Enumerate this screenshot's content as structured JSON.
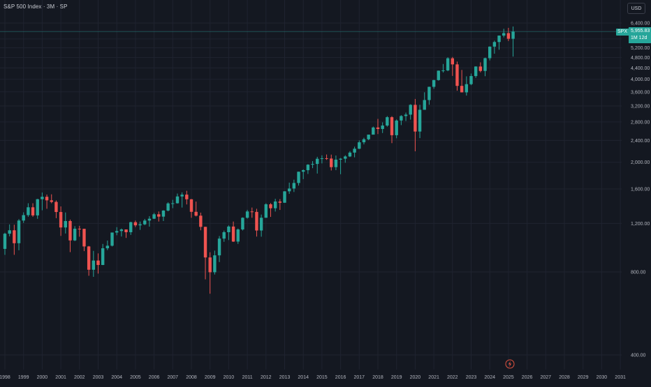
{
  "header": {
    "title": "S&P 500 Index · 3M · SP",
    "currency": "USD"
  },
  "last_price": {
    "symbol": "SPX",
    "value": "5,955.83",
    "countdown": "1M 12d"
  },
  "colors": {
    "background": "#141821",
    "grid": "#1f2330",
    "up": "#26a69a",
    "down": "#ef5350",
    "axis_text": "#b2b5be",
    "price_line": "#26a69a"
  },
  "chart_data": {
    "type": "candlestick",
    "title": "S&P 500 Index · 3M · SP",
    "xlabel": "",
    "ylabel": "",
    "y_scale": "log",
    "ylim": [
      360,
      7200
    ],
    "xlim": [
      1998.0,
      2031.6
    ],
    "y_ticks": [
      400,
      800,
      1200,
      1600,
      2000,
      2400,
      2800,
      3200,
      3600,
      4000,
      4400,
      4800,
      5200,
      5600,
      6000,
      6400
    ],
    "y_tick_labels": [
      "400.00",
      "800.00",
      "1,200.00",
      "1,600.00",
      "2,000.00",
      "2,400.00",
      "2,800.00",
      "3,200.00",
      "3,600.00",
      "4,000.00",
      "4,400.00",
      "4,800.00",
      "5,200.00",
      "5,600.00",
      "6,000.00",
      "6,400.00"
    ],
    "x_ticks": [
      "1998",
      "1999",
      "2000",
      "2001",
      "2002",
      "2003",
      "2004",
      "2005",
      "2006",
      "2007",
      "2008",
      "2009",
      "2010",
      "2011",
      "2012",
      "2013",
      "2014",
      "2015",
      "2016",
      "2017",
      "2018",
      "2019",
      "2020",
      "2021",
      "2022",
      "2023",
      "2024",
      "2025",
      "2026",
      "2027",
      "2028",
      "2029",
      "2030",
      "2031"
    ],
    "grid": true,
    "legend": "none",
    "last_price": 5955.83,
    "candles": [
      {
        "x": 1998.0,
        "o": 970,
        "h": 1110,
        "l": 923,
        "c": 1101
      },
      {
        "x": 1998.25,
        "o": 1101,
        "h": 1190,
        "l": 1077,
        "c": 1133
      },
      {
        "x": 1998.5,
        "o": 1133,
        "h": 1187,
        "l": 923,
        "c": 1017
      },
      {
        "x": 1998.75,
        "o": 1017,
        "h": 1244,
        "l": 959,
        "c": 1229
      },
      {
        "x": 1999.0,
        "o": 1229,
        "h": 1316,
        "l": 1205,
        "c": 1286
      },
      {
        "x": 1999.25,
        "o": 1286,
        "h": 1420,
        "l": 1268,
        "c": 1373
      },
      {
        "x": 1999.5,
        "o": 1373,
        "h": 1420,
        "l": 1268,
        "c": 1283
      },
      {
        "x": 1999.75,
        "o": 1283,
        "h": 1473,
        "l": 1247,
        "c": 1469
      },
      {
        "x": 2000.0,
        "o": 1469,
        "h": 1553,
        "l": 1339,
        "c": 1499
      },
      {
        "x": 2000.25,
        "o": 1499,
        "h": 1527,
        "l": 1356,
        "c": 1455
      },
      {
        "x": 2000.5,
        "o": 1455,
        "h": 1530,
        "l": 1420,
        "c": 1436
      },
      {
        "x": 2000.75,
        "o": 1436,
        "h": 1454,
        "l": 1254,
        "c": 1320
      },
      {
        "x": 2001.0,
        "o": 1320,
        "h": 1383,
        "l": 1081,
        "c": 1160
      },
      {
        "x": 2001.25,
        "o": 1160,
        "h": 1315,
        "l": 1103,
        "c": 1224
      },
      {
        "x": 2001.5,
        "o": 1224,
        "h": 1239,
        "l": 944,
        "c": 1041
      },
      {
        "x": 2001.75,
        "o": 1041,
        "h": 1173,
        "l": 1035,
        "c": 1148
      },
      {
        "x": 2002.0,
        "o": 1148,
        "h": 1176,
        "l": 1074,
        "c": 1147
      },
      {
        "x": 2002.25,
        "o": 1147,
        "h": 1147,
        "l": 952,
        "c": 990
      },
      {
        "x": 2002.5,
        "o": 990,
        "h": 994,
        "l": 775,
        "c": 815
      },
      {
        "x": 2002.75,
        "o": 815,
        "h": 954,
        "l": 768,
        "c": 880
      },
      {
        "x": 2003.0,
        "o": 880,
        "h": 934,
        "l": 789,
        "c": 848
      },
      {
        "x": 2003.25,
        "o": 848,
        "h": 1011,
        "l": 847,
        "c": 975
      },
      {
        "x": 2003.5,
        "o": 975,
        "h": 1040,
        "l": 960,
        "c": 996
      },
      {
        "x": 2003.75,
        "o": 996,
        "h": 1112,
        "l": 990,
        "c": 1112
      },
      {
        "x": 2004.0,
        "o": 1112,
        "h": 1163,
        "l": 1087,
        "c": 1126
      },
      {
        "x": 2004.25,
        "o": 1126,
        "h": 1150,
        "l": 1076,
        "c": 1141
      },
      {
        "x": 2004.5,
        "o": 1141,
        "h": 1141,
        "l": 1063,
        "c": 1115
      },
      {
        "x": 2004.75,
        "o": 1115,
        "h": 1217,
        "l": 1090,
        "c": 1212
      },
      {
        "x": 2005.0,
        "o": 1212,
        "h": 1229,
        "l": 1164,
        "c": 1181
      },
      {
        "x": 2005.25,
        "o": 1181,
        "h": 1219,
        "l": 1137,
        "c": 1191
      },
      {
        "x": 2005.5,
        "o": 1191,
        "h": 1246,
        "l": 1183,
        "c": 1229
      },
      {
        "x": 2005.75,
        "o": 1229,
        "h": 1275,
        "l": 1168,
        "c": 1248
      },
      {
        "x": 2006.0,
        "o": 1248,
        "h": 1310,
        "l": 1245,
        "c": 1295
      },
      {
        "x": 2006.25,
        "o": 1295,
        "h": 1326,
        "l": 1219,
        "c": 1270
      },
      {
        "x": 2006.5,
        "o": 1270,
        "h": 1340,
        "l": 1224,
        "c": 1336
      },
      {
        "x": 2006.75,
        "o": 1336,
        "h": 1431,
        "l": 1327,
        "c": 1418
      },
      {
        "x": 2007.0,
        "o": 1418,
        "h": 1461,
        "l": 1363,
        "c": 1420
      },
      {
        "x": 2007.25,
        "o": 1420,
        "h": 1540,
        "l": 1416,
        "c": 1503
      },
      {
        "x": 2007.5,
        "o": 1503,
        "h": 1555,
        "l": 1370,
        "c": 1526
      },
      {
        "x": 2007.75,
        "o": 1526,
        "h": 1576,
        "l": 1406,
        "c": 1468
      },
      {
        "x": 2008.0,
        "o": 1468,
        "h": 1471,
        "l": 1257,
        "c": 1322
      },
      {
        "x": 2008.25,
        "o": 1322,
        "h": 1440,
        "l": 1272,
        "c": 1280
      },
      {
        "x": 2008.5,
        "o": 1280,
        "h": 1313,
        "l": 1133,
        "c": 1166
      },
      {
        "x": 2008.75,
        "o": 1166,
        "h": 1167,
        "l": 752,
        "c": 903
      },
      {
        "x": 2009.0,
        "o": 903,
        "h": 943,
        "l": 667,
        "c": 798
      },
      {
        "x": 2009.25,
        "o": 798,
        "h": 956,
        "l": 783,
        "c": 919
      },
      {
        "x": 2009.5,
        "o": 919,
        "h": 1080,
        "l": 869,
        "c": 1057
      },
      {
        "x": 2009.75,
        "o": 1057,
        "h": 1130,
        "l": 1029,
        "c": 1115
      },
      {
        "x": 2010.0,
        "o": 1115,
        "h": 1180,
        "l": 1044,
        "c": 1169
      },
      {
        "x": 2010.25,
        "o": 1169,
        "h": 1219,
        "l": 1028,
        "c": 1031
      },
      {
        "x": 2010.5,
        "o": 1031,
        "h": 1150,
        "l": 1011,
        "c": 1141
      },
      {
        "x": 2010.75,
        "o": 1141,
        "h": 1262,
        "l": 1131,
        "c": 1258
      },
      {
        "x": 2011.0,
        "o": 1258,
        "h": 1344,
        "l": 1249,
        "c": 1326
      },
      {
        "x": 2011.25,
        "o": 1326,
        "h": 1370,
        "l": 1258,
        "c": 1321
      },
      {
        "x": 2011.5,
        "o": 1321,
        "h": 1356,
        "l": 1075,
        "c": 1131
      },
      {
        "x": 2011.75,
        "o": 1131,
        "h": 1292,
        "l": 1074,
        "c": 1258
      },
      {
        "x": 2012.0,
        "o": 1258,
        "h": 1420,
        "l": 1258,
        "c": 1408
      },
      {
        "x": 2012.25,
        "o": 1408,
        "h": 1422,
        "l": 1267,
        "c": 1362
      },
      {
        "x": 2012.5,
        "o": 1362,
        "h": 1474,
        "l": 1325,
        "c": 1441
      },
      {
        "x": 2012.75,
        "o": 1441,
        "h": 1470,
        "l": 1343,
        "c": 1426
      },
      {
        "x": 2013.0,
        "o": 1426,
        "h": 1570,
        "l": 1426,
        "c": 1569
      },
      {
        "x": 2013.25,
        "o": 1569,
        "h": 1687,
        "l": 1536,
        "c": 1606
      },
      {
        "x": 2013.5,
        "o": 1606,
        "h": 1729,
        "l": 1560,
        "c": 1682
      },
      {
        "x": 2013.75,
        "o": 1682,
        "h": 1849,
        "l": 1646,
        "c": 1848
      },
      {
        "x": 2014.0,
        "o": 1848,
        "h": 1884,
        "l": 1737,
        "c": 1872
      },
      {
        "x": 2014.25,
        "o": 1872,
        "h": 1968,
        "l": 1814,
        "c": 1960
      },
      {
        "x": 2014.5,
        "o": 1960,
        "h": 2019,
        "l": 1904,
        "c": 1972
      },
      {
        "x": 2014.75,
        "o": 1972,
        "h": 2093,
        "l": 1820,
        "c": 2059
      },
      {
        "x": 2015.0,
        "o": 2059,
        "h": 2119,
        "l": 1981,
        "c": 2068
      },
      {
        "x": 2015.25,
        "o": 2068,
        "h": 2134,
        "l": 2040,
        "c": 2063
      },
      {
        "x": 2015.5,
        "o": 2063,
        "h": 2132,
        "l": 1867,
        "c": 1920
      },
      {
        "x": 2015.75,
        "o": 1920,
        "h": 2116,
        "l": 1872,
        "c": 2044
      },
      {
        "x": 2016.0,
        "o": 2044,
        "h": 2072,
        "l": 1810,
        "c": 2060
      },
      {
        "x": 2016.25,
        "o": 2060,
        "h": 2120,
        "l": 1992,
        "c": 2099
      },
      {
        "x": 2016.5,
        "o": 2099,
        "h": 2194,
        "l": 2089,
        "c": 2168
      },
      {
        "x": 2016.75,
        "o": 2168,
        "h": 2278,
        "l": 2084,
        "c": 2239
      },
      {
        "x": 2017.0,
        "o": 2239,
        "h": 2401,
        "l": 2233,
        "c": 2363
      },
      {
        "x": 2017.25,
        "o": 2363,
        "h": 2454,
        "l": 2322,
        "c": 2423
      },
      {
        "x": 2017.5,
        "o": 2423,
        "h": 2520,
        "l": 2406,
        "c": 2519
      },
      {
        "x": 2017.75,
        "o": 2519,
        "h": 2694,
        "l": 2520,
        "c": 2674
      },
      {
        "x": 2018.0,
        "o": 2674,
        "h": 2873,
        "l": 2532,
        "c": 2641
      },
      {
        "x": 2018.25,
        "o": 2641,
        "h": 2791,
        "l": 2553,
        "c": 2718
      },
      {
        "x": 2018.5,
        "o": 2718,
        "h": 2940,
        "l": 2692,
        "c": 2914
      },
      {
        "x": 2018.75,
        "o": 2914,
        "h": 2939,
        "l": 2346,
        "c": 2507
      },
      {
        "x": 2019.0,
        "o": 2507,
        "h": 2860,
        "l": 2444,
        "c": 2834
      },
      {
        "x": 2019.25,
        "o": 2834,
        "h": 2964,
        "l": 2728,
        "c": 2942
      },
      {
        "x": 2019.5,
        "o": 2942,
        "h": 3028,
        "l": 2822,
        "c": 2977
      },
      {
        "x": 2019.75,
        "o": 2977,
        "h": 3247,
        "l": 2855,
        "c": 3231
      },
      {
        "x": 2020.0,
        "o": 3231,
        "h": 3394,
        "l": 2192,
        "c": 2585
      },
      {
        "x": 2020.25,
        "o": 2585,
        "h": 3233,
        "l": 2447,
        "c": 3100
      },
      {
        "x": 2020.5,
        "o": 3100,
        "h": 3588,
        "l": 3101,
        "c": 3363
      },
      {
        "x": 2020.75,
        "o": 3363,
        "h": 3760,
        "l": 3233,
        "c": 3756
      },
      {
        "x": 2021.0,
        "o": 3756,
        "h": 3983,
        "l": 3694,
        "c": 3973
      },
      {
        "x": 2021.25,
        "o": 3973,
        "h": 4302,
        "l": 3955,
        "c": 4298
      },
      {
        "x": 2021.5,
        "o": 4298,
        "h": 4545,
        "l": 4233,
        "c": 4308
      },
      {
        "x": 2021.75,
        "o": 4308,
        "h": 4808,
        "l": 4278,
        "c": 4766
      },
      {
        "x": 2022.0,
        "o": 4766,
        "h": 4818,
        "l": 4114,
        "c": 4530
      },
      {
        "x": 2022.25,
        "o": 4530,
        "h": 4637,
        "l": 3636,
        "c": 3785
      },
      {
        "x": 2022.5,
        "o": 3785,
        "h": 4325,
        "l": 3584,
        "c": 3586
      },
      {
        "x": 2022.75,
        "o": 3586,
        "h": 4100,
        "l": 3491,
        "c": 3840
      },
      {
        "x": 2023.0,
        "o": 3840,
        "h": 4195,
        "l": 3808,
        "c": 4109
      },
      {
        "x": 2023.25,
        "o": 4109,
        "h": 4458,
        "l": 4048,
        "c": 4450
      },
      {
        "x": 2023.5,
        "o": 4450,
        "h": 4607,
        "l": 4238,
        "c": 4288
      },
      {
        "x": 2023.75,
        "o": 4288,
        "h": 4793,
        "l": 4104,
        "c": 4770
      },
      {
        "x": 2024.0,
        "o": 4770,
        "h": 5264,
        "l": 4682,
        "c": 5254
      },
      {
        "x": 2024.25,
        "o": 5254,
        "h": 5523,
        "l": 4953,
        "c": 5460
      },
      {
        "x": 2024.5,
        "o": 5460,
        "h": 5767,
        "l": 5119,
        "c": 5762
      },
      {
        "x": 2024.75,
        "o": 5762,
        "h": 6099,
        "l": 5674,
        "c": 5881
      },
      {
        "x": 2025.0,
        "o": 5881,
        "h": 6147,
        "l": 5505,
        "c": 5611
      },
      {
        "x": 2025.25,
        "o": 5611,
        "h": 6215,
        "l": 4835,
        "c": 5955.83
      }
    ]
  }
}
